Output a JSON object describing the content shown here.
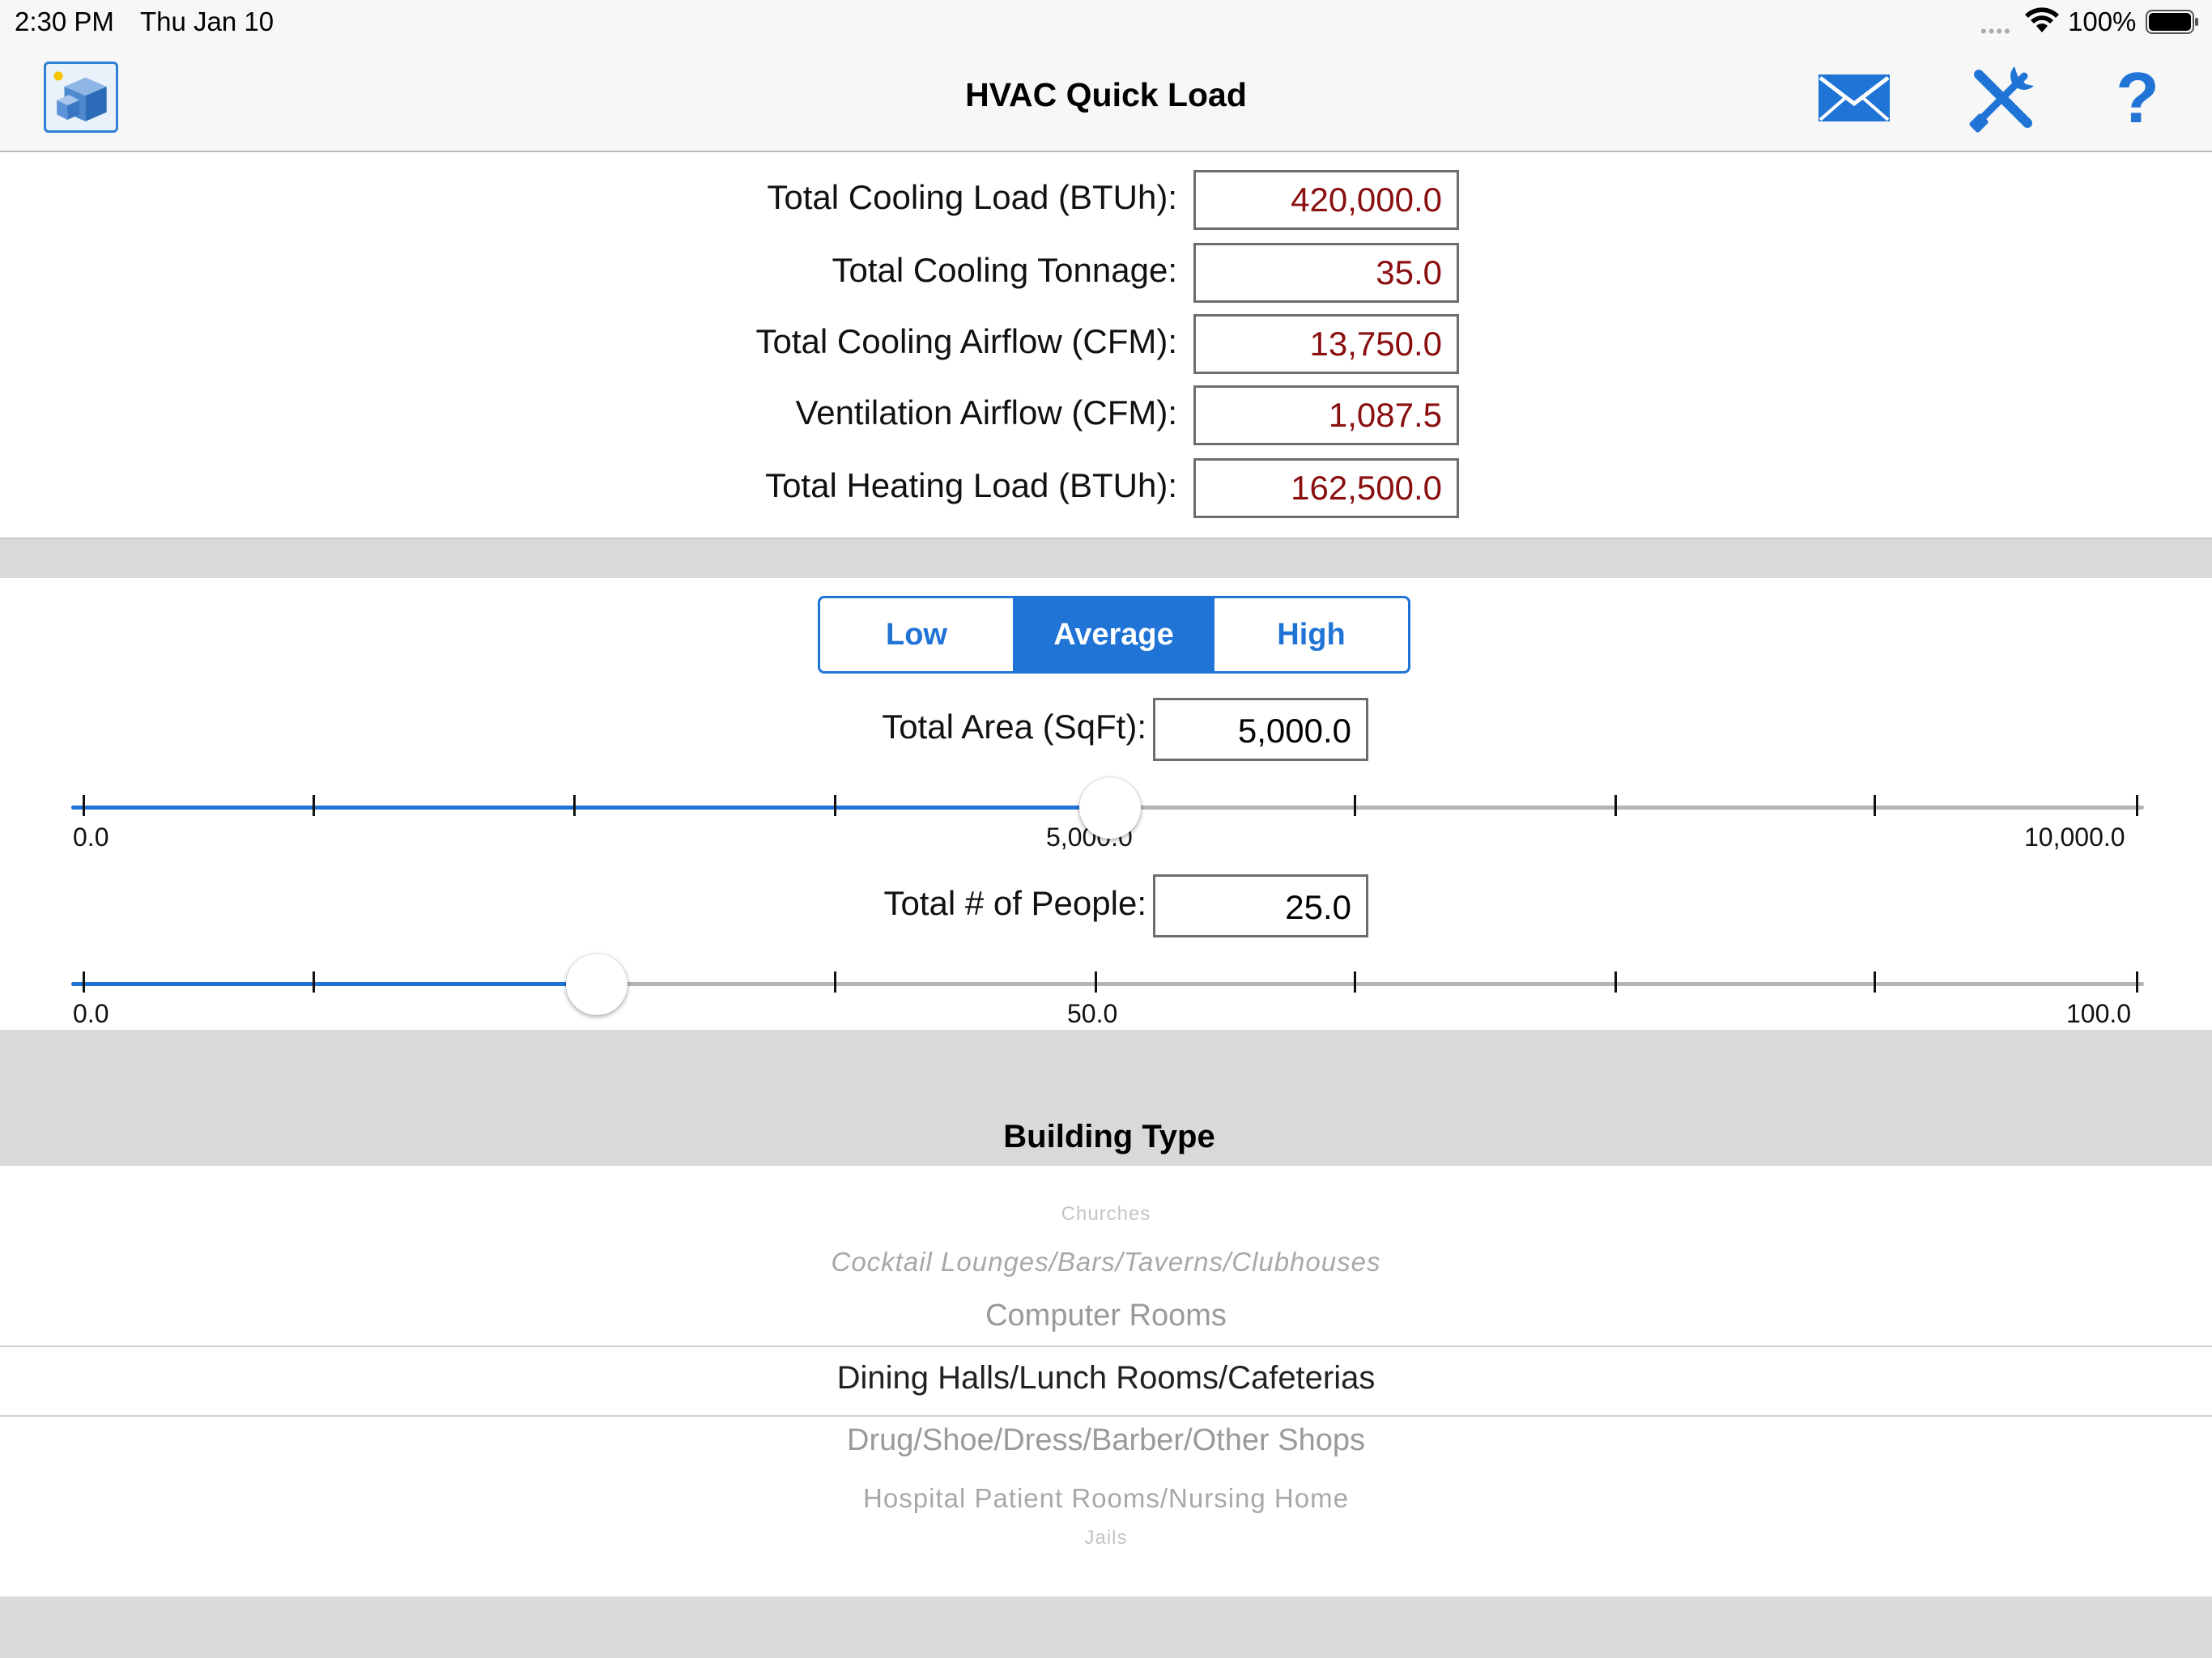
{
  "status_bar": {
    "time": "2:30 PM",
    "date": "Thu Jan 10",
    "battery_percent": "100%"
  },
  "nav": {
    "title": "HVAC Quick Load",
    "app_icon": "building-icon",
    "mail_icon": "envelope-icon",
    "tools_icon": "tools-icon",
    "help_label": "?"
  },
  "results": [
    {
      "label": "Total Cooling Load (BTUh):",
      "value": "420,000.0"
    },
    {
      "label": "Total Cooling Tonnage:",
      "value": "35.0"
    },
    {
      "label": "Total Cooling Airflow (CFM):",
      "value": "13,750.0"
    },
    {
      "label": "Ventilation Airflow (CFM):",
      "value": "1,087.5"
    },
    {
      "label": "Total Heating Load (BTUh):",
      "value": "162,500.0"
    }
  ],
  "load_level": {
    "options": [
      "Low",
      "Average",
      "High"
    ],
    "selected": "Average"
  },
  "area": {
    "label": "Total Area (SqFt):",
    "value": "5,000.0",
    "slider": {
      "min": 0,
      "max": 10000,
      "value": 5000,
      "labels": [
        "0.0",
        "5,000.0",
        "10,000.0"
      ]
    }
  },
  "people": {
    "label": "Total # of People:",
    "value": "25.0",
    "slider": {
      "min": 0,
      "max": 100,
      "value": 25,
      "labels": [
        "0.0",
        "50.0",
        "100.0"
      ]
    }
  },
  "building_type": {
    "title": "Building Type",
    "items_above": [
      "Churches",
      "Cocktail Lounges/Bars/Taverns/Clubhouses",
      "Computer Rooms"
    ],
    "selected": "Dining Halls/Lunch Rooms/Cafeterias",
    "items_below": [
      "Drug/Shoe/Dress/Barber/Other Shops",
      "Hospital Patient Rooms/Nursing Home",
      "Jails"
    ]
  },
  "colors": {
    "accent": "#1f74d6",
    "result_text": "#8a0f10",
    "band_gray": "#d9d9d9"
  }
}
